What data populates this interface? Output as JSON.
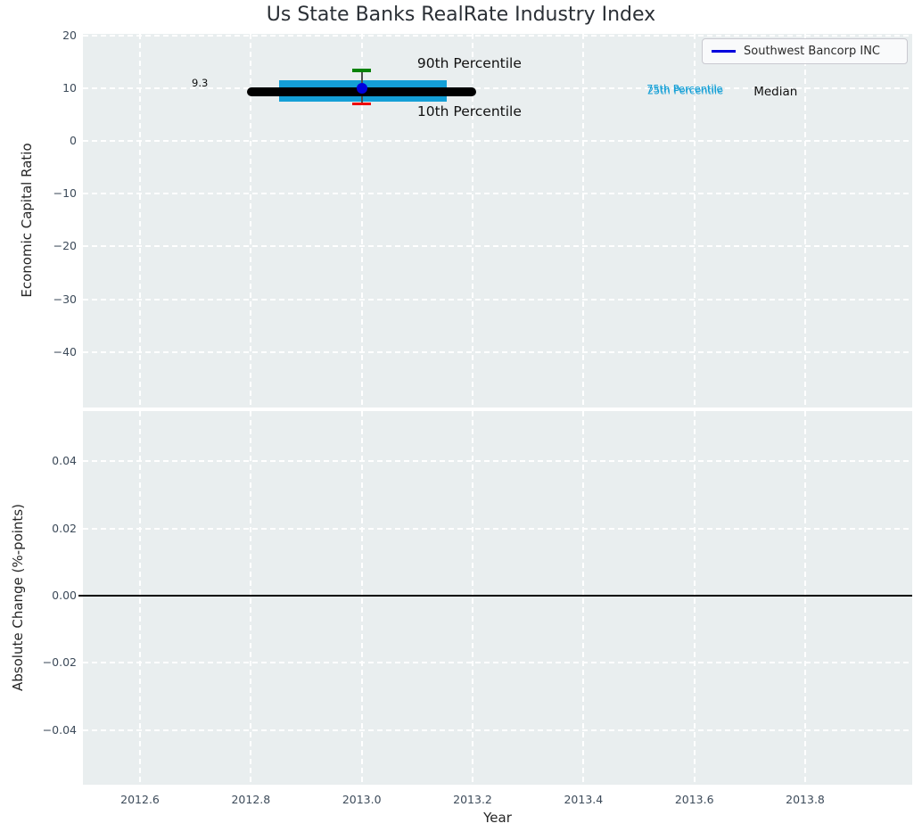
{
  "title": "Us State Banks RealRate Industry Index",
  "legend": {
    "label": "Southwest Bancorp INC",
    "line_color": "#0000dd"
  },
  "colors": {
    "plot_background": "#e9eeef",
    "grid": "#ffffff",
    "tick_text": "#3d4b5a",
    "cyan_accent": "#149fd6",
    "green_accent": "#068206",
    "red_accent": "#ed0202",
    "blue_accent": "#0000dd",
    "black": "#000000"
  },
  "chart_data": [
    {
      "id": "economic-capital-ratio-panel",
      "type": "box",
      "ylabel": "Economic Capital Ratio",
      "xlim": [
        2012.497,
        2013.993
      ],
      "ylim": [
        -50.5,
        20.3
      ],
      "grid": true,
      "yticks": {
        "values": [
          20,
          10,
          0,
          -10,
          -20,
          -30,
          -40
        ],
        "labels": [
          "20",
          "10",
          "0",
          "−10",
          "−20",
          "−30",
          "−40"
        ]
      },
      "xticks": {
        "values": [
          2012.6,
          2012.8,
          2013.0,
          2013.2,
          2013.4,
          2013.6,
          2013.8
        ],
        "labels": []
      },
      "box": {
        "x_center": 2013.0,
        "median": {
          "value": 9.3,
          "x_start": 2012.793,
          "x_end": 2013.206,
          "color": "#000000",
          "thickness_px": 10
        },
        "iqr": {
          "q1": 7.5,
          "q3": 11.5,
          "x_start": 2012.851,
          "x_end": 2013.154,
          "color": "#149fd6"
        },
        "p90": {
          "value": 13.3,
          "color": "#068206"
        },
        "p10": {
          "value": 7.0,
          "color": "#ed0202"
        },
        "whisker_color": "#4d4d4d"
      },
      "company_point": {
        "label": "Southwest Bancorp INC",
        "x": 2013.0,
        "y": 10.0,
        "color": "#0000dd"
      },
      "annotations": [
        {
          "name": "median-value-label",
          "text": "9.3",
          "x": 2012.708,
          "y": 11.0,
          "anchor": "middle",
          "size": 11.5,
          "color": "#111111"
        },
        {
          "name": "p90-label",
          "text": "90th Percentile",
          "x": 2013.1,
          "y": 14.65,
          "anchor": "start",
          "size": 15.5,
          "color": "#111111"
        },
        {
          "name": "p10-label",
          "text": "10th Percentile",
          "x": 2013.1,
          "y": 5.6,
          "anchor": "start",
          "size": 15.5,
          "color": "#111111"
        },
        {
          "name": "p75-label",
          "text": "75th Percentile",
          "x": 2013.514,
          "y": 9.86,
          "anchor": "start",
          "size": 11.3,
          "color": "#149fd6"
        },
        {
          "name": "p25-label",
          "text": "25th Percentile",
          "x": 2013.515,
          "y": 9.5,
          "anchor": "start",
          "size": 11.3,
          "color": "#149fd6"
        },
        {
          "name": "median-label",
          "text": "Median",
          "x": 2013.707,
          "y": 9.27,
          "anchor": "start",
          "size": 13.5,
          "color": "#111111"
        }
      ]
    },
    {
      "id": "absolute-change-panel",
      "type": "line",
      "ylabel": "Absolute Change (%-points)",
      "xlabel": "Year",
      "xlim": [
        2012.497,
        2013.993
      ],
      "ylim": [
        -0.0563,
        0.0549
      ],
      "grid": true,
      "yticks": {
        "values": [
          0.04,
          0.02,
          0.0,
          -0.02,
          -0.04
        ],
        "labels": [
          "0.04",
          "0.02",
          "0.00",
          "−0.02",
          "−0.04"
        ]
      },
      "xticks": {
        "values": [
          2012.6,
          2012.8,
          2013.0,
          2013.2,
          2013.4,
          2013.6,
          2013.8
        ],
        "labels": [
          "2012.6",
          "2012.8",
          "2013.0",
          "2013.2",
          "2013.4",
          "2013.6",
          "2013.8"
        ]
      },
      "zero_line": {
        "y": 0.0,
        "color": "#000000",
        "thickness_px": 2
      }
    }
  ]
}
